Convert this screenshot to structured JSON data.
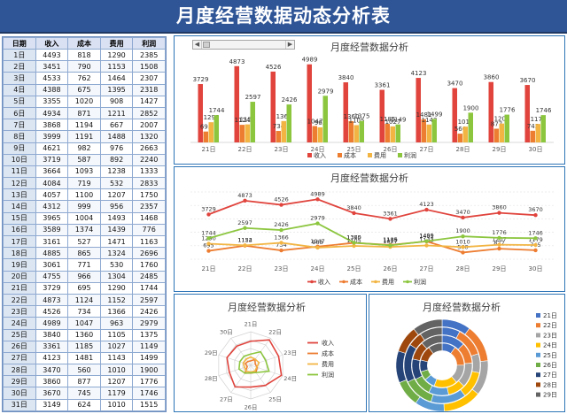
{
  "header": {
    "title": "月度经营数据动态分析表"
  },
  "table": {
    "columns": [
      "日期",
      "收入",
      "成本",
      "费用",
      "利润"
    ],
    "rows": [
      [
        "1日",
        "4493",
        "818",
        "1290",
        "2385"
      ],
      [
        "2日",
        "3451",
        "790",
        "1153",
        "1508"
      ],
      [
        "3日",
        "4533",
        "762",
        "1464",
        "2307"
      ],
      [
        "4日",
        "4388",
        "675",
        "1395",
        "2318"
      ],
      [
        "5日",
        "3355",
        "1020",
        "908",
        "1427"
      ],
      [
        "6日",
        "4934",
        "871",
        "1211",
        "2852"
      ],
      [
        "7日",
        "3868",
        "1194",
        "667",
        "2007"
      ],
      [
        "8日",
        "3999",
        "1191",
        "1488",
        "1320"
      ],
      [
        "9日",
        "4621",
        "982",
        "976",
        "2663"
      ],
      [
        "10日",
        "3719",
        "587",
        "892",
        "2240"
      ],
      [
        "11日",
        "3664",
        "1093",
        "1238",
        "1333"
      ],
      [
        "12日",
        "4084",
        "719",
        "532",
        "2833"
      ],
      [
        "13日",
        "4057",
        "1100",
        "1207",
        "1750"
      ],
      [
        "14日",
        "4312",
        "999",
        "956",
        "2357"
      ],
      [
        "15日",
        "3965",
        "1004",
        "1493",
        "1468"
      ],
      [
        "16日",
        "3589",
        "1374",
        "1439",
        "776"
      ],
      [
        "17日",
        "3161",
        "527",
        "1471",
        "1163"
      ],
      [
        "18日",
        "4885",
        "865",
        "1324",
        "2696"
      ],
      [
        "19日",
        "3061",
        "771",
        "530",
        "1760"
      ],
      [
        "20日",
        "4755",
        "966",
        "1304",
        "2485"
      ],
      [
        "21日",
        "3729",
        "695",
        "1290",
        "1744"
      ],
      [
        "22日",
        "4873",
        "1124",
        "1152",
        "2597"
      ],
      [
        "23日",
        "4526",
        "734",
        "1366",
        "2426"
      ],
      [
        "24日",
        "4989",
        "1047",
        "963",
        "2979"
      ],
      [
        "25日",
        "3840",
        "1360",
        "1105",
        "1375"
      ],
      [
        "26日",
        "3361",
        "1185",
        "1027",
        "1149"
      ],
      [
        "27日",
        "4123",
        "1481",
        "1143",
        "1499"
      ],
      [
        "28日",
        "3470",
        "560",
        "1010",
        "1900"
      ],
      [
        "29日",
        "3860",
        "877",
        "1207",
        "1776"
      ],
      [
        "30日",
        "3670",
        "745",
        "1179",
        "1746"
      ],
      [
        "31日",
        "3149",
        "624",
        "1010",
        "1515"
      ]
    ]
  },
  "chart_title": "月度经营数据分析",
  "scrollbar": {
    "left_arrow": "◀",
    "right_arrow": "▶"
  },
  "colors": {
    "revenue": "#e0443d",
    "cost": "#ed7d31",
    "expense": "#f2b544",
    "profit": "#8cc63f",
    "header_bg": "#2f5597",
    "panel_border": "#2e75b6"
  },
  "chart_data": [
    {
      "type": "bar",
      "title": "月度经营数据分析",
      "categories": [
        "21日",
        "22日",
        "23日",
        "24日",
        "25日",
        "26日",
        "27日",
        "28日",
        "29日",
        "30日"
      ],
      "series": [
        {
          "name": "收入",
          "values": [
            3729,
            4873,
            4526,
            4989,
            3840,
            3361,
            4123,
            3470,
            3860,
            3670
          ]
        },
        {
          "name": "成本",
          "values": [
            695,
            1124,
            734,
            1047,
            1360,
            1185,
            1481,
            560,
            877,
            745
          ]
        },
        {
          "name": "费用",
          "values": [
            1290,
            1152,
            1366,
            963,
            1105,
            1027,
            1143,
            1010,
            1207,
            1179
          ]
        },
        {
          "name": "利润",
          "values": [
            1744,
            2597,
            2426,
            2979,
            1375,
            1149,
            1499,
            1900,
            1776,
            1746
          ]
        }
      ],
      "legend": "bottom"
    },
    {
      "type": "line",
      "title": "月度经营数据分析",
      "categories": [
        "21日",
        "22日",
        "23日",
        "24日",
        "25日",
        "26日",
        "27日",
        "28日",
        "29日",
        "30日"
      ],
      "series": [
        {
          "name": "收入",
          "values": [
            3729,
            4873,
            4526,
            4989,
            3840,
            3361,
            4123,
            3470,
            3860,
            3670
          ]
        },
        {
          "name": "成本",
          "values": [
            695,
            1124,
            734,
            1047,
            1360,
            1185,
            1481,
            560,
            877,
            745
          ]
        },
        {
          "name": "费用",
          "values": [
            1290,
            1152,
            1366,
            963,
            1105,
            1027,
            1143,
            1010,
            1207,
            1179
          ]
        },
        {
          "name": "利润",
          "values": [
            1744,
            2597,
            2426,
            2979,
            1375,
            1149,
            1499,
            1900,
            1776,
            1746
          ]
        }
      ],
      "legend": "bottom"
    },
    {
      "type": "radar",
      "title": "月度经营数据分析",
      "categories": [
        "21日",
        "22日",
        "23日",
        "24日",
        "25日",
        "26日",
        "27日",
        "28日",
        "29日",
        "30日"
      ],
      "series": [
        {
          "name": "收入",
          "values": [
            3729,
            4873,
            4526,
            4989,
            3840,
            3361,
            4123,
            3470,
            3860,
            3670
          ]
        },
        {
          "name": "成本",
          "values": [
            695,
            1124,
            734,
            1047,
            1360,
            1185,
            1481,
            560,
            877,
            745
          ]
        },
        {
          "name": "费用",
          "values": [
            1290,
            1152,
            1366,
            963,
            1105,
            1027,
            1143,
            1010,
            1207,
            1179
          ]
        },
        {
          "name": "利润",
          "values": [
            1744,
            2597,
            2426,
            2979,
            1375,
            1149,
            1499,
            1900,
            1776,
            1746
          ]
        }
      ],
      "legend": "right"
    },
    {
      "type": "doughnut",
      "title": "月度经营数据分析",
      "categories": [
        "21日",
        "22日",
        "23日",
        "24日",
        "25日",
        "26日",
        "27日",
        "28日",
        "29日"
      ],
      "series": [
        {
          "name": "收入",
          "values": [
            3729,
            4873,
            4526,
            4989,
            3840,
            3361,
            4123,
            3470,
            3860
          ]
        },
        {
          "name": "成本",
          "values": [
            695,
            1124,
            734,
            1047,
            1360,
            1185,
            1481,
            560,
            877
          ]
        },
        {
          "name": "费用",
          "values": [
            1290,
            1152,
            1366,
            963,
            1105,
            1027,
            1143,
            1010,
            1207
          ]
        },
        {
          "name": "利润",
          "values": [
            1744,
            2597,
            2426,
            2979,
            1375,
            1149,
            1499,
            1900,
            1776
          ]
        }
      ],
      "legend": "right"
    }
  ]
}
